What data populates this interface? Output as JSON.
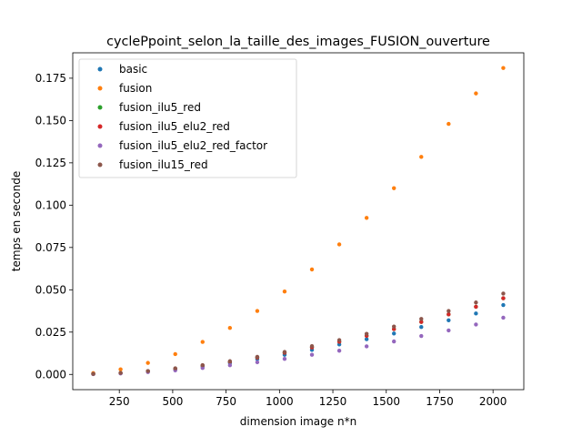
{
  "chart_data": {
    "type": "scatter",
    "title": "cyclePpoint_selon_la_taille_des_images_FUSION_ouverture",
    "xlabel": "dimension image n*n",
    "ylabel": "temps en seconde",
    "xlim": [
      32,
      2144
    ],
    "ylim": [
      -0.009,
      0.19
    ],
    "xticks": [
      {
        "value": 250,
        "label": "250"
      },
      {
        "value": 500,
        "label": "500"
      },
      {
        "value": 750,
        "label": "750"
      },
      {
        "value": 1000,
        "label": "1000"
      },
      {
        "value": 1250,
        "label": "1250"
      },
      {
        "value": 1500,
        "label": "1500"
      },
      {
        "value": 1750,
        "label": "1750"
      },
      {
        "value": 2000,
        "label": "2000"
      }
    ],
    "yticks": [
      {
        "value": 0.0,
        "label": "0.000"
      },
      {
        "value": 0.025,
        "label": "0.025"
      },
      {
        "value": 0.05,
        "label": "0.050"
      },
      {
        "value": 0.075,
        "label": "0.075"
      },
      {
        "value": 0.1,
        "label": "0.100"
      },
      {
        "value": 0.125,
        "label": "0.125"
      },
      {
        "value": 0.15,
        "label": "0.150"
      },
      {
        "value": 0.175,
        "label": "0.175"
      }
    ],
    "grid": false,
    "legend_position": "top-left",
    "x": [
      128,
      256,
      384,
      512,
      640,
      768,
      896,
      1024,
      1152,
      1280,
      1408,
      1536,
      1664,
      1792,
      1920,
      2048
    ],
    "series": [
      {
        "name": "basic",
        "color": "#1f77b4",
        "values": [
          0.0003,
          0.0007,
          0.0016,
          0.003,
          0.0047,
          0.0068,
          0.0091,
          0.0116,
          0.0145,
          0.0177,
          0.0208,
          0.0242,
          0.028,
          0.032,
          0.036,
          0.041
        ]
      },
      {
        "name": "fusion",
        "color": "#ff7f0e",
        "values": [
          0.0008,
          0.003,
          0.0068,
          0.012,
          0.0192,
          0.0275,
          0.0375,
          0.049,
          0.062,
          0.0768,
          0.0925,
          0.11,
          0.1285,
          0.148,
          0.166,
          0.181
        ]
      },
      {
        "name": "fusion_ilu5_red",
        "color": "#2ca02c",
        "values": [
          0.0003,
          0.0008,
          0.0019,
          0.0034,
          0.0053,
          0.0075,
          0.01,
          0.0128,
          0.016,
          0.0193,
          0.0228,
          0.0268,
          0.031,
          0.0355,
          0.04,
          0.045
        ]
      },
      {
        "name": "fusion_ilu5_elu2_red",
        "color": "#d62728",
        "values": [
          0.0003,
          0.0008,
          0.0019,
          0.0034,
          0.0053,
          0.0075,
          0.01,
          0.0128,
          0.016,
          0.0193,
          0.0228,
          0.0268,
          0.031,
          0.0355,
          0.04,
          0.045
        ]
      },
      {
        "name": "fusion_ilu5_elu2_red_factor",
        "color": "#9467bd",
        "values": [
          0.0002,
          0.0006,
          0.0014,
          0.0024,
          0.0038,
          0.0054,
          0.0072,
          0.0092,
          0.0116,
          0.014,
          0.0166,
          0.0195,
          0.0227,
          0.026,
          0.0295,
          0.0335
        ]
      },
      {
        "name": "fusion_ilu15_red",
        "color": "#8c564b",
        "values": [
          0.0003,
          0.0009,
          0.002,
          0.0036,
          0.0055,
          0.0078,
          0.0104,
          0.0133,
          0.0167,
          0.0203,
          0.024,
          0.0283,
          0.0328,
          0.0375,
          0.0425,
          0.0478
        ]
      }
    ]
  }
}
